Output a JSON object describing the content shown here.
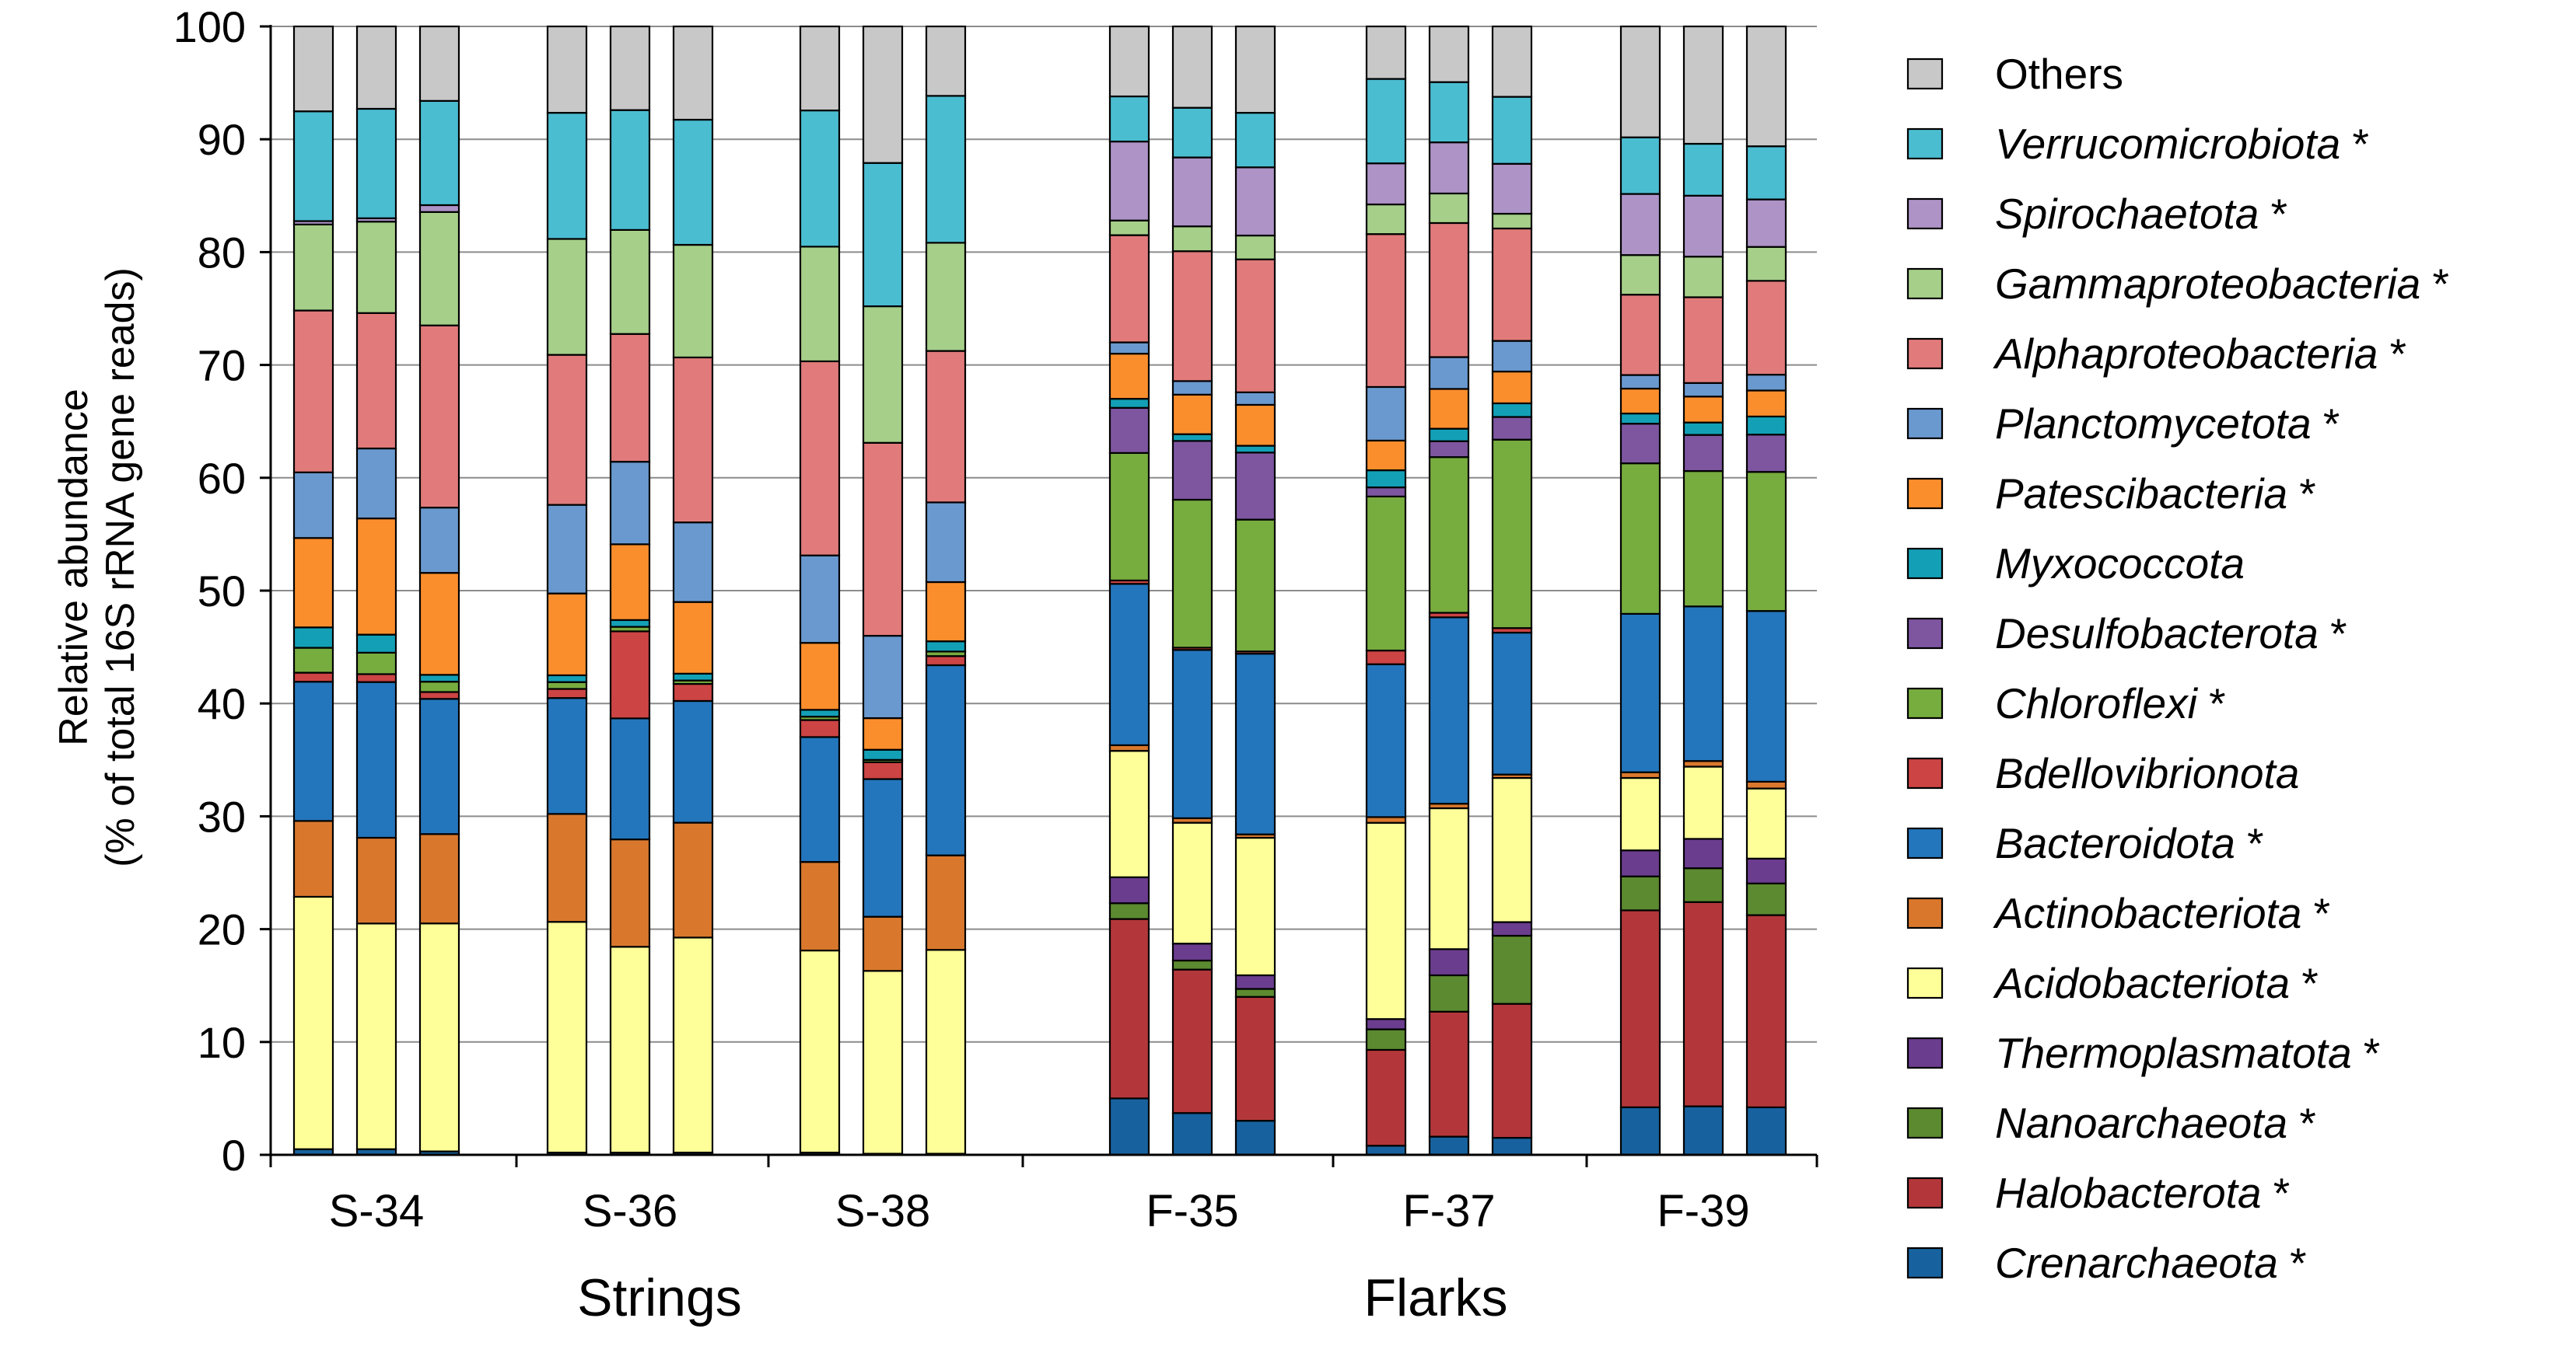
{
  "chart_data": {
    "type": "stacked_bar",
    "ylabel_line1": "Relative abundance",
    "ylabel_line2": "(% of total 16S rRNA gene reads)",
    "ylim": [
      0,
      100
    ],
    "yticks": [
      "0",
      "10",
      "20",
      "30",
      "40",
      "50",
      "60",
      "70",
      "80",
      "90",
      "100"
    ],
    "grid": true,
    "legend_position": "right",
    "groups": [
      {
        "label": "S-34",
        "category": "Strings"
      },
      {
        "label": "S-36",
        "category": "Strings"
      },
      {
        "label": "S-38",
        "category": "Strings"
      },
      {
        "label": "F-35",
        "category": "Flarks"
      },
      {
        "label": "F-37",
        "category": "Flarks"
      },
      {
        "label": "F-39",
        "category": "Flarks"
      }
    ],
    "categories_labels": [
      "Strings",
      "Flarks"
    ],
    "series": [
      {
        "name": "Crenarchaeota",
        "star": "*",
        "color": "#17629e",
        "values": [
          0.5,
          0.5,
          0.3,
          0.2,
          0.2,
          0.2,
          0.2,
          0.1,
          0.1,
          5,
          3.7,
          3,
          0.8,
          1.6,
          1.5,
          4.2,
          4.3,
          4.2
        ]
      },
      {
        "name": "Halobacterota",
        "star": "*",
        "color": "#b3373a",
        "values": [
          0,
          0,
          0,
          0,
          0,
          0,
          0,
          0,
          0,
          15.9,
          12.7,
          10.9,
          8.4,
          11,
          11.8,
          17.4,
          18.1,
          17
        ]
      },
      {
        "name": "Nanoarchaeota",
        "star": "*",
        "color": "#5c8a30",
        "values": [
          0,
          0,
          0,
          0,
          0,
          0,
          0,
          0,
          0,
          1.4,
          0.8,
          0.7,
          1.8,
          3.2,
          6,
          3,
          3,
          2.8
        ]
      },
      {
        "name": "Thermoplasmatota",
        "star": "*",
        "color": "#6b3d8e",
        "values": [
          0,
          0,
          0,
          0,
          0,
          0,
          0,
          0,
          0,
          2.3,
          1.5,
          1.2,
          0.9,
          2.3,
          1.2,
          2.3,
          2.6,
          2.2
        ]
      },
      {
        "name": "Acidobacteriota",
        "star": "*",
        "color": "#ffff99",
        "values": [
          22.3,
          20,
          19.9,
          20.3,
          18.2,
          18.9,
          17.8,
          16.2,
          17.9,
          11.2,
          10.7,
          12.1,
          17.2,
          12.4,
          12.7,
          6.4,
          6.4,
          6.2
        ]
      },
      {
        "name": "Actinobacteriota",
        "star": "*",
        "color": "#d9782d",
        "values": [
          6.7,
          7.6,
          7.8,
          9.5,
          9.5,
          10.1,
          7.8,
          4.8,
          8.3,
          0.5,
          0.4,
          0.3,
          0.5,
          0.4,
          0.3,
          0.5,
          0.5,
          0.6
        ]
      },
      {
        "name": "Bacteroidota",
        "star": "*",
        "color": "#2476bc",
        "values": [
          12.3,
          13.8,
          11.8,
          10.2,
          10.7,
          10.7,
          11,
          12.2,
          16.7,
          14.3,
          14.9,
          15.9,
          13.4,
          16.4,
          12.5,
          14,
          13.7,
          15.1
        ]
      },
      {
        "name": "Bdellovibrionota",
        "star": "",
        "color": "#cc4444",
        "values": [
          0.8,
          0.7,
          0.6,
          0.8,
          7.7,
          1.5,
          1.5,
          1.5,
          0.8,
          0.3,
          0.2,
          0.2,
          1.2,
          0.4,
          0.4,
          0,
          0,
          0
        ]
      },
      {
        "name": "Chloroflexi",
        "star": "*",
        "color": "#77ac3f",
        "values": [
          2.2,
          1.9,
          0.9,
          0.6,
          0.4,
          0.3,
          0.3,
          0.2,
          0.4,
          11.3,
          13.1,
          11.6,
          13.5,
          13.7,
          16.6,
          13.3,
          12,
          12.3
        ]
      },
      {
        "name": "Desulfobacterota",
        "star": "*",
        "color": "#7e56a0",
        "values": [
          0,
          0,
          0,
          0,
          0,
          0,
          0,
          0,
          0,
          4,
          5.2,
          5.9,
          0.8,
          1.4,
          2,
          3.5,
          3.2,
          3.3
        ]
      },
      {
        "name": "Myxococcota",
        "star": "",
        "color": "#13a0b6",
        "values": [
          1.8,
          1.6,
          0.6,
          0.6,
          0.6,
          0.6,
          0.6,
          0.9,
          0.9,
          0.8,
          0.6,
          0.6,
          1.5,
          1.1,
          1.2,
          0.9,
          1.1,
          1.6
        ]
      },
      {
        "name": "Patescibacteria",
        "star": "*",
        "color": "#fb8e2c",
        "values": [
          7.9,
          10.3,
          8.9,
          7.2,
          6.7,
          6.3,
          5.9,
          2.8,
          5.2,
          4,
          3.5,
          3.6,
          2.6,
          3.5,
          2.8,
          2.2,
          2.3,
          2.3
        ]
      },
      {
        "name": "Planctomycetota",
        "star": "*",
        "color": "#6a99cf",
        "values": [
          5.8,
          6.2,
          5.7,
          7.8,
          7.3,
          7,
          7.7,
          7.3,
          7,
          1,
          1.2,
          1.1,
          4.7,
          2.8,
          2.7,
          1.2,
          1.2,
          1.4
        ]
      },
      {
        "name": "Alphaproteobacteria",
        "star": "*",
        "color": "#e17b7b",
        "values": [
          14.3,
          12,
          15.9,
          13.2,
          11.3,
          14.5,
          17.1,
          17.1,
          13.3,
          9.5,
          11.5,
          11.7,
          13.4,
          11.8,
          9.9,
          7.1,
          7.6,
          8.3
        ]
      },
      {
        "name": "Gammaproteobacteria",
        "star": "*",
        "color": "#a6cf89",
        "values": [
          7.6,
          8.1,
          9.9,
          10.2,
          9.2,
          9.9,
          10.1,
          12.1,
          9.5,
          1.3,
          2.2,
          2.1,
          2.6,
          2.6,
          1.3,
          3.5,
          3.6,
          3
        ]
      },
      {
        "name": "Spirochaetota",
        "star": "*",
        "color": "#ad93c6",
        "values": [
          0.3,
          0.3,
          0.6,
          0,
          0,
          0,
          0,
          0,
          0,
          7,
          6.1,
          6,
          3.6,
          4.5,
          4.4,
          5.4,
          5.4,
          4.2
        ]
      },
      {
        "name": "Verrucomicrobiota",
        "star": "*",
        "color": "#4bbdd1",
        "values": [
          9.7,
          9.7,
          9.1,
          11.1,
          10.6,
          11,
          12,
          12.7,
          12.9,
          4,
          4.4,
          4.8,
          7.4,
          5.3,
          5.9,
          5,
          4.6,
          4.7
        ]
      },
      {
        "name": "Others",
        "star": "",
        "color": "#c8c8c8",
        "values": [
          7.5,
          7.3,
          6.5,
          7.6,
          7.4,
          8.2,
          7.4,
          12.1,
          6.1,
          6.2,
          7.2,
          7.6,
          4.6,
          4.9,
          6.2,
          9.8,
          10.4,
          10.6
        ]
      }
    ]
  }
}
